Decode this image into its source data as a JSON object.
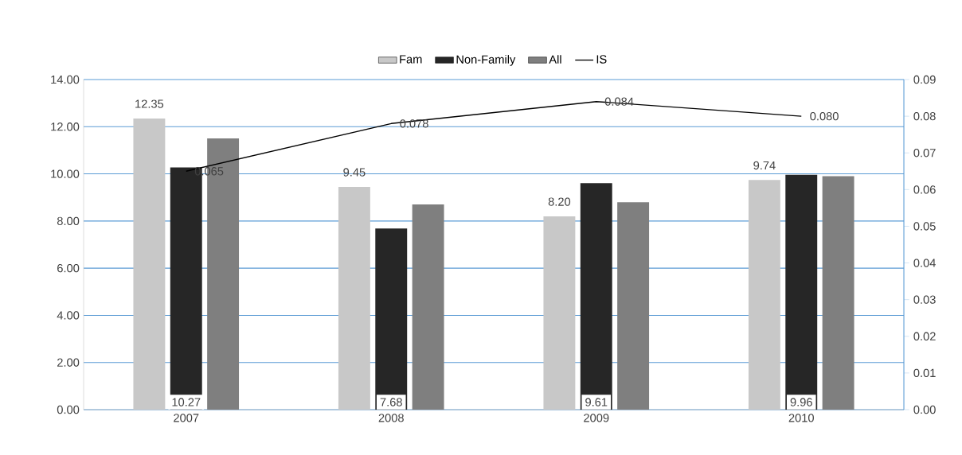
{
  "chart_data": {
    "type": "bar",
    "categories": [
      "2007",
      "2008",
      "2009",
      "2010"
    ],
    "series": [
      {
        "name": "Fam",
        "color": "#c8c8c8",
        "values": [
          12.35,
          9.45,
          8.2,
          9.74
        ],
        "value_labels": [
          "12.35",
          "9.45",
          "8.20",
          "9.74"
        ]
      },
      {
        "name": "Non-Family",
        "color": "#262626",
        "values": [
          10.27,
          7.68,
          9.61,
          9.96
        ],
        "value_labels": [
          "10.27",
          "7.68",
          "9.61",
          "9.96"
        ]
      },
      {
        "name": "All",
        "color": "#7f7f7f",
        "values": [
          11.5,
          8.7,
          8.8,
          9.9
        ]
      },
      {
        "name": "IS",
        "type": "line",
        "axis": "y2",
        "color": "#000000",
        "values": [
          0.065,
          0.078,
          0.084,
          0.08
        ],
        "value_labels": [
          "0.065",
          "0.078",
          "0.084",
          "0.080"
        ]
      }
    ],
    "ylim": [
      0,
      14
    ],
    "yticks": [
      {
        "value": 0,
        "label": "0.00"
      },
      {
        "value": 2,
        "label": "2.00"
      },
      {
        "value": 4,
        "label": "4.00"
      },
      {
        "value": 6,
        "label": "6.00"
      },
      {
        "value": 8,
        "label": "8.00"
      },
      {
        "value": 10,
        "label": "10.00"
      },
      {
        "value": 12,
        "label": "12.00"
      },
      {
        "value": 14,
        "label": "14.00"
      }
    ],
    "y2lim": [
      0,
      0.09
    ],
    "y2ticks": [
      {
        "value": 0,
        "label": "0.00"
      },
      {
        "value": 0.01,
        "label": "0.01"
      },
      {
        "value": 0.02,
        "label": "0.02"
      },
      {
        "value": 0.03,
        "label": "0.03"
      },
      {
        "value": 0.04,
        "label": "0.04"
      },
      {
        "value": 0.05,
        "label": "0.05"
      },
      {
        "value": 0.06,
        "label": "0.06"
      },
      {
        "value": 0.07,
        "label": "0.07"
      },
      {
        "value": 0.08,
        "label": "0.08"
      },
      {
        "value": 0.09,
        "label": "0.09"
      }
    ],
    "grid": "y",
    "legend": "top",
    "marker": "none",
    "line_style": "solid"
  }
}
